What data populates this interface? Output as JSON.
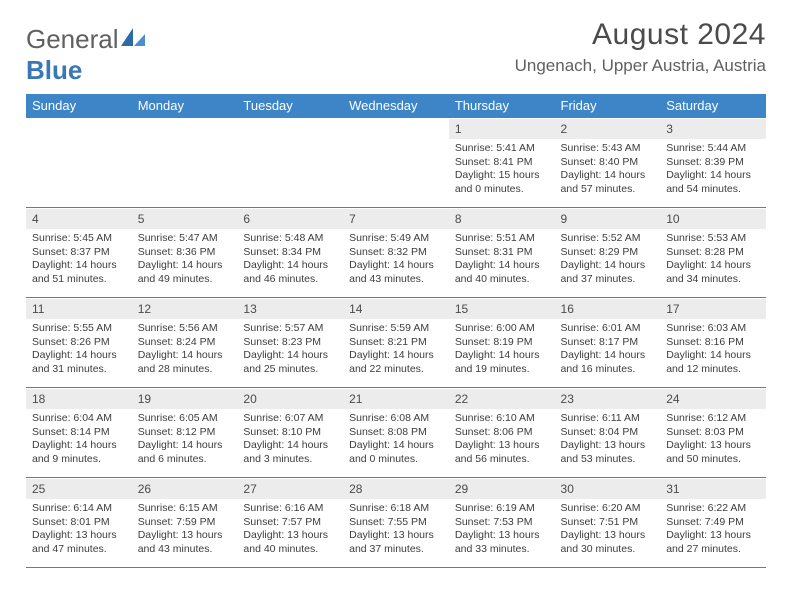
{
  "logo": {
    "prefix": "General",
    "suffix": "Blue"
  },
  "header": {
    "title": "August 2024",
    "subtitle": "Ungenach, Upper Austria, Austria"
  },
  "colors": {
    "accent": "#3d85c6",
    "row_bg": "#ececec"
  },
  "dow": [
    "Sunday",
    "Monday",
    "Tuesday",
    "Wednesday",
    "Thursday",
    "Friday",
    "Saturday"
  ],
  "weeks": [
    [
      null,
      null,
      null,
      null,
      {
        "n": "1",
        "sr": "5:41 AM",
        "ss": "8:41 PM",
        "dl": "15 hours and 0 minutes."
      },
      {
        "n": "2",
        "sr": "5:43 AM",
        "ss": "8:40 PM",
        "dl": "14 hours and 57 minutes."
      },
      {
        "n": "3",
        "sr": "5:44 AM",
        "ss": "8:39 PM",
        "dl": "14 hours and 54 minutes."
      }
    ],
    [
      {
        "n": "4",
        "sr": "5:45 AM",
        "ss": "8:37 PM",
        "dl": "14 hours and 51 minutes."
      },
      {
        "n": "5",
        "sr": "5:47 AM",
        "ss": "8:36 PM",
        "dl": "14 hours and 49 minutes."
      },
      {
        "n": "6",
        "sr": "5:48 AM",
        "ss": "8:34 PM",
        "dl": "14 hours and 46 minutes."
      },
      {
        "n": "7",
        "sr": "5:49 AM",
        "ss": "8:32 PM",
        "dl": "14 hours and 43 minutes."
      },
      {
        "n": "8",
        "sr": "5:51 AM",
        "ss": "8:31 PM",
        "dl": "14 hours and 40 minutes."
      },
      {
        "n": "9",
        "sr": "5:52 AM",
        "ss": "8:29 PM",
        "dl": "14 hours and 37 minutes."
      },
      {
        "n": "10",
        "sr": "5:53 AM",
        "ss": "8:28 PM",
        "dl": "14 hours and 34 minutes."
      }
    ],
    [
      {
        "n": "11",
        "sr": "5:55 AM",
        "ss": "8:26 PM",
        "dl": "14 hours and 31 minutes."
      },
      {
        "n": "12",
        "sr": "5:56 AM",
        "ss": "8:24 PM",
        "dl": "14 hours and 28 minutes."
      },
      {
        "n": "13",
        "sr": "5:57 AM",
        "ss": "8:23 PM",
        "dl": "14 hours and 25 minutes."
      },
      {
        "n": "14",
        "sr": "5:59 AM",
        "ss": "8:21 PM",
        "dl": "14 hours and 22 minutes."
      },
      {
        "n": "15",
        "sr": "6:00 AM",
        "ss": "8:19 PM",
        "dl": "14 hours and 19 minutes."
      },
      {
        "n": "16",
        "sr": "6:01 AM",
        "ss": "8:17 PM",
        "dl": "14 hours and 16 minutes."
      },
      {
        "n": "17",
        "sr": "6:03 AM",
        "ss": "8:16 PM",
        "dl": "14 hours and 12 minutes."
      }
    ],
    [
      {
        "n": "18",
        "sr": "6:04 AM",
        "ss": "8:14 PM",
        "dl": "14 hours and 9 minutes."
      },
      {
        "n": "19",
        "sr": "6:05 AM",
        "ss": "8:12 PM",
        "dl": "14 hours and 6 minutes."
      },
      {
        "n": "20",
        "sr": "6:07 AM",
        "ss": "8:10 PM",
        "dl": "14 hours and 3 minutes."
      },
      {
        "n": "21",
        "sr": "6:08 AM",
        "ss": "8:08 PM",
        "dl": "14 hours and 0 minutes."
      },
      {
        "n": "22",
        "sr": "6:10 AM",
        "ss": "8:06 PM",
        "dl": "13 hours and 56 minutes."
      },
      {
        "n": "23",
        "sr": "6:11 AM",
        "ss": "8:04 PM",
        "dl": "13 hours and 53 minutes."
      },
      {
        "n": "24",
        "sr": "6:12 AM",
        "ss": "8:03 PM",
        "dl": "13 hours and 50 minutes."
      }
    ],
    [
      {
        "n": "25",
        "sr": "6:14 AM",
        "ss": "8:01 PM",
        "dl": "13 hours and 47 minutes."
      },
      {
        "n": "26",
        "sr": "6:15 AM",
        "ss": "7:59 PM",
        "dl": "13 hours and 43 minutes."
      },
      {
        "n": "27",
        "sr": "6:16 AM",
        "ss": "7:57 PM",
        "dl": "13 hours and 40 minutes."
      },
      {
        "n": "28",
        "sr": "6:18 AM",
        "ss": "7:55 PM",
        "dl": "13 hours and 37 minutes."
      },
      {
        "n": "29",
        "sr": "6:19 AM",
        "ss": "7:53 PM",
        "dl": "13 hours and 33 minutes."
      },
      {
        "n": "30",
        "sr": "6:20 AM",
        "ss": "7:51 PM",
        "dl": "13 hours and 30 minutes."
      },
      {
        "n": "31",
        "sr": "6:22 AM",
        "ss": "7:49 PM",
        "dl": "13 hours and 27 minutes."
      }
    ]
  ]
}
